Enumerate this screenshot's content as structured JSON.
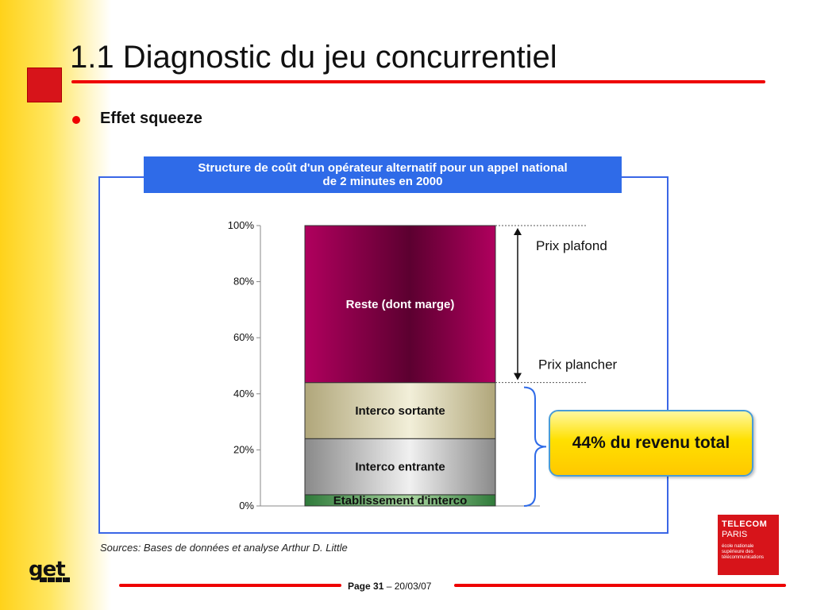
{
  "slide": {
    "title": "1.1 Diagnostic du jeu concurrentiel",
    "bullet": "Effet squeeze",
    "sources": "Sources: Bases de données et analyse Arthur D. Little",
    "footer": {
      "page_label": "Page 31",
      "separator": " – ",
      "date": "20/03/07"
    },
    "logo_get": "get",
    "telecom_logo": {
      "line1": "TELECOM",
      "line2": "PARIS",
      "tagline": "école nationale supérieure des télécommunications"
    },
    "colors": {
      "accent_red": "#e00000",
      "header_blue": "#2f6be8",
      "panel_border": "#3a66e6"
    }
  },
  "chart_data": {
    "type": "bar",
    "title_line1": "Structure de coût d'un opérateur alternatif pour un appel national",
    "title_line2": "de 2 minutes en 2000",
    "stacked": true,
    "ylim": [
      0,
      100
    ],
    "yticks": [
      "0%",
      "20%",
      "40%",
      "60%",
      "80%",
      "100%"
    ],
    "series": [
      {
        "name": "Etablissement d'interco",
        "value": 4,
        "color": "#2f7a3a"
      },
      {
        "name": "Interco entrante",
        "value": 20,
        "color": "#a8a8a8"
      },
      {
        "name": "Interco sortante",
        "value": 20,
        "color": "#c9c297"
      },
      {
        "name": "Reste (dont marge)",
        "value": 56,
        "color": "#b0005e"
      }
    ],
    "annotations": {
      "prix_plafond": {
        "label": "Prix plafond",
        "value": 100
      },
      "prix_plancher": {
        "label": "Prix plancher",
        "value": 44
      },
      "callout": "44% du revenu total"
    }
  }
}
